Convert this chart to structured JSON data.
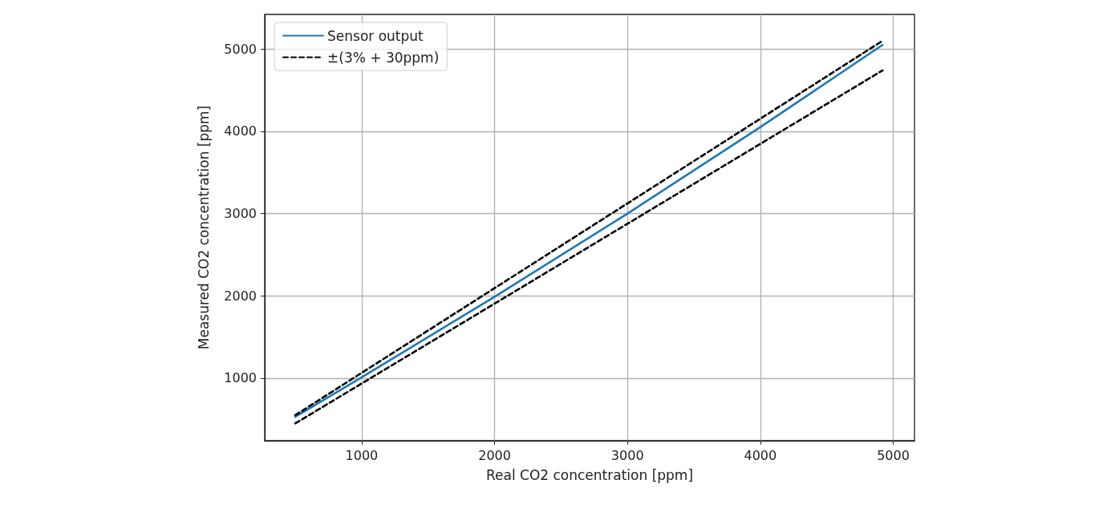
{
  "chart_data": {
    "type": "line",
    "xlabel": "Real CO2 concentration [ppm]",
    "ylabel": "Measured CO2 concentration [ppm]",
    "xlim": [
      270,
      5160
    ],
    "ylim": [
      240,
      5420
    ],
    "xticks": [
      1000,
      2000,
      3000,
      4000,
      5000
    ],
    "yticks": [
      1000,
      2000,
      3000,
      4000,
      5000
    ],
    "grid": true,
    "legend": "top left",
    "marker": "none",
    "series": [
      {
        "name": "Sensor output",
        "color": "#1f77b4",
        "line_style": "solid",
        "x": [
          500,
          1000,
          2000,
          3000,
          4000,
          4920
        ],
        "values": [
          530,
          1010,
          1990,
          3000,
          4050,
          5050
        ]
      },
      {
        "name": "±(3% + 30ppm)",
        "color": "#000000",
        "line_style": "dashed",
        "x": [
          500,
          4920
        ],
        "values": [
          550,
          5100
        ]
      },
      {
        "color": "#000000",
        "line_style": "dashed",
        "x": [
          500,
          4920
        ],
        "values": [
          450,
          4740
        ]
      }
    ]
  }
}
